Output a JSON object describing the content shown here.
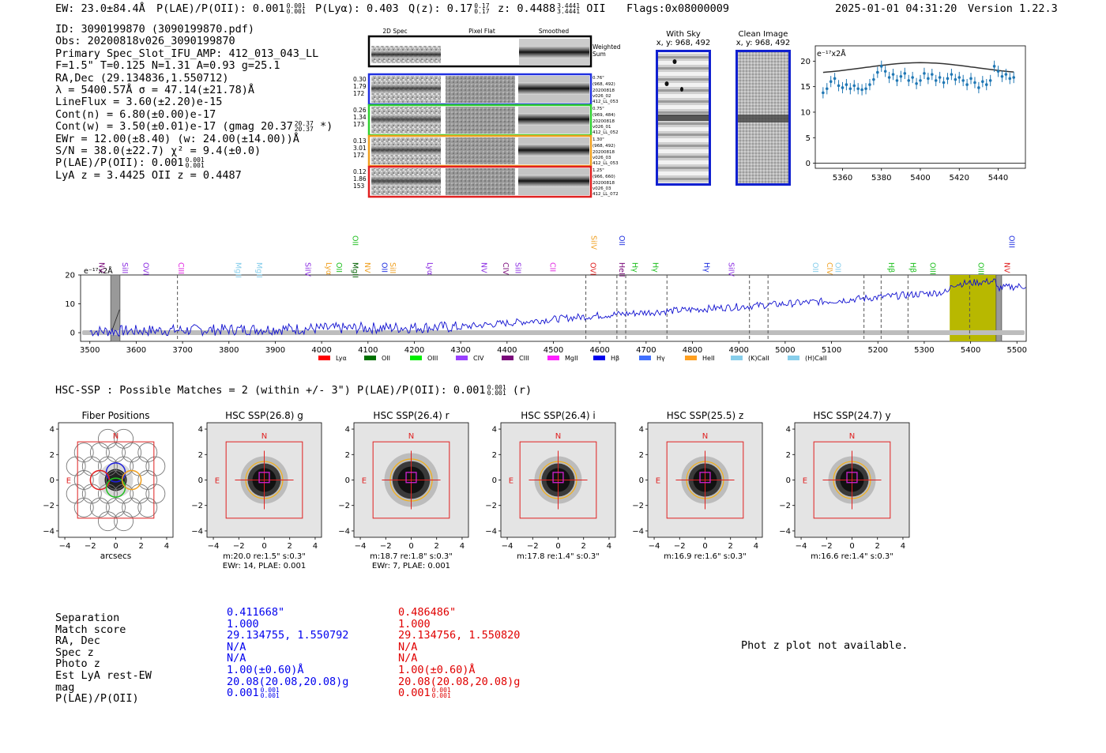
{
  "header": {
    "ew": "EW: 23.0±84.4Å",
    "plae_label": "P(LAE)/P(OII): 0.001",
    "plae_hi": "0.001",
    "plae_lo": "0.001",
    "plya": "P(Lyα): 0.403",
    "qz_label": "Q(z): 0.17",
    "qz_hi": "0.17",
    "qz_lo": "0.17",
    "z_label": "z: 0.4488",
    "z_hi": "3.4441",
    "z_lo": "3.4441",
    "z_line": "OII",
    "flags": "Flags:0x08000009",
    "datetime": "2025-01-01 04:31:20",
    "version": "Version 1.22.3"
  },
  "info": {
    "id": "ID: 3090199870 (3090199870.pdf)",
    "obs": "Obs: 20200818v026_3090199870",
    "primary": "Primary Spec_Slot_IFU_AMP: 412_013_043_LL",
    "fwhm": "F=1.5\"  T=0.125  N=1.31  A=0.93  g=25.1",
    "radec": "RA,Dec (29.134836,1.550712)",
    "lambda": "λ = 5400.57Å  σ = 47.14(±21.78)Å",
    "lineflux": "LineFlux = 3.60(±2.20)e-15",
    "contn": "Cont(n) = 6.80(±0.00)e-17",
    "contw": "Cont(w) = 3.50(±0.01)e-17 (gmag 20.37",
    "contw_hi": "20.37",
    "contw_lo": "20.37",
    "contw_end": "*)",
    "ewr": "EWr = 12.00(±8.40) (w: 24.00(±14.00))Å",
    "sn": "S/N = 38.0(±22.7)  χ² = 9.4(±0.0)",
    "plae": "P(LAE)/P(OII): 0.001",
    "plae_hi": "0.001",
    "plae_lo": "0.001",
    "lyaz": "LyA z = 3.4425  OII z = 0.4487"
  },
  "cutouts": {
    "col_2d": "2D Spec",
    "col_flat": "Pixel Flat",
    "col_smooth": "Smoothed",
    "weighted": "Weighted",
    "sum": "Sum",
    "rows": [
      {
        "a": "0.30",
        "b": "1.79",
        "c": "172",
        "r1": "0.76\"",
        "r2": "(968, 492)",
        "r3": "20200818",
        "r4": "v026_02",
        "r5": "412_LL_053",
        "color": "#2030e0"
      },
      {
        "a": "0.26",
        "b": "1.34",
        "c": "173",
        "r1": "0.75\"",
        "r2": "(969, 484)",
        "r3": "20200818",
        "r4": "v026_01",
        "r5": "412_LL_052",
        "color": "#30d030"
      },
      {
        "a": "0.13",
        "b": "3.01",
        "c": "172",
        "r1": "1.30\"",
        "r2": "(968, 492)",
        "r3": "20200818",
        "r4": "v026_03",
        "r5": "412_LL_053",
        "color": "#f0a020"
      },
      {
        "a": "0.12",
        "b": "1.86",
        "c": "153",
        "r1": "1.25\"",
        "r2": "(966, 660)",
        "r3": "20200818",
        "r4": "v026_03",
        "r5": "412_LL_072",
        "color": "#e02020"
      }
    ]
  },
  "sky": {
    "with_sky": "With Sky",
    "with_sky_xy": "x, y: 968, 492",
    "clean": "Clean Image",
    "clean_xy": "x, y: 968, 492"
  },
  "zoom_chart": {
    "type": "line",
    "ylabel": "e⁻¹⁷x2Å",
    "xticks": [
      5360,
      5380,
      5400,
      5420,
      5440
    ],
    "yticks": [
      0,
      5,
      10,
      15,
      20
    ],
    "xlim": [
      5346,
      5454
    ],
    "ylim": [
      -1,
      23
    ],
    "points": [
      [
        5350,
        13.8
      ],
      [
        5352,
        14.6
      ],
      [
        5354,
        16
      ],
      [
        5356,
        16.6
      ],
      [
        5358,
        15.2
      ],
      [
        5360,
        14.8
      ],
      [
        5362,
        15.4
      ],
      [
        5364,
        14.6
      ],
      [
        5366,
        15.2
      ],
      [
        5368,
        14.6
      ],
      [
        5370,
        14.4
      ],
      [
        5372,
        14.6
      ],
      [
        5374,
        15.4
      ],
      [
        5376,
        16.4
      ],
      [
        5378,
        17.8
      ],
      [
        5380,
        19
      ],
      [
        5382,
        18
      ],
      [
        5384,
        16.8
      ],
      [
        5386,
        17.4
      ],
      [
        5388,
        16.2
      ],
      [
        5390,
        17
      ],
      [
        5392,
        17.6
      ],
      [
        5394,
        16.2
      ],
      [
        5396,
        16.8
      ],
      [
        5398,
        15.6
      ],
      [
        5400,
        16.2
      ],
      [
        5402,
        17.6
      ],
      [
        5404,
        16.6
      ],
      [
        5406,
        17.4
      ],
      [
        5408,
        16.2
      ],
      [
        5410,
        16.8
      ],
      [
        5412,
        15.8
      ],
      [
        5414,
        16.6
      ],
      [
        5416,
        17.4
      ],
      [
        5418,
        16.4
      ],
      [
        5420,
        16.8
      ],
      [
        5422,
        16.2
      ],
      [
        5424,
        15.4
      ],
      [
        5426,
        16.6
      ],
      [
        5428,
        15.8
      ],
      [
        5430,
        14.8
      ],
      [
        5432,
        16
      ],
      [
        5434,
        15.4
      ],
      [
        5436,
        16.2
      ],
      [
        5438,
        19
      ],
      [
        5440,
        18
      ],
      [
        5442,
        17
      ],
      [
        5444,
        17.4
      ],
      [
        5446,
        16.6
      ],
      [
        5448,
        16.8
      ]
    ]
  },
  "spectrum": {
    "type": "line",
    "ylabel": "e⁻¹⁷x2Å",
    "xticks": [
      3500,
      3600,
      3700,
      3800,
      3900,
      4000,
      4100,
      4200,
      4300,
      4400,
      4500,
      4600,
      4700,
      4800,
      4900,
      5000,
      5100,
      5200,
      5300,
      5400,
      5500
    ],
    "yticks": [
      0,
      10,
      20
    ],
    "xlim": [
      3480,
      5520
    ],
    "ylim": [
      -3,
      20
    ],
    "highlight_range": [
      5355,
      5455
    ],
    "dashed_lines": [
      3689,
      4570,
      4637,
      4656,
      4745,
      4923,
      4963,
      5170,
      5207,
      5265,
      5398
    ],
    "lines": [
      {
        "name": "NV",
        "x": 3515,
        "color": "#7a0a7a"
      },
      {
        "name": "SiII",
        "x": 3565,
        "color": "#8a2be2"
      },
      {
        "name": "OVI",
        "x": 3610,
        "color": "#8a2be2"
      },
      {
        "name": "CIII",
        "x": 3686,
        "color": "#e020e0"
      },
      {
        "name": "MgII",
        "x": 3810,
        "color": "#87ceeb"
      },
      {
        "name": "MgII",
        "x": 3855,
        "color": "#87ceeb"
      },
      {
        "name": "SiIV",
        "x": 3960,
        "color": "#8a2be2"
      },
      {
        "name": "Lyα",
        "x": 4005,
        "color": "#f0a020"
      },
      {
        "name": "OII",
        "x": 4027,
        "color": "#20c020"
      },
      {
        "name": "MgII",
        "x": 4062,
        "color": "#006000"
      },
      {
        "name": "OII",
        "x": 4062,
        "color": "#20c020",
        "upper": true
      },
      {
        "name": "NV",
        "x": 4088,
        "color": "#f0a020"
      },
      {
        "name": "OII",
        "x": 4125,
        "color": "#2030e0"
      },
      {
        "name": "SiII",
        "x": 4143,
        "color": "#f0a020"
      },
      {
        "name": "Lyα",
        "x": 4223,
        "color": "#8a2be2"
      },
      {
        "name": "NV",
        "x": 4340,
        "color": "#8a2be2"
      },
      {
        "name": "CIV",
        "x": 4387,
        "color": "#7a0a7a"
      },
      {
        "name": "SiII",
        "x": 4413,
        "color": "#8a2be2"
      },
      {
        "name": "CII",
        "x": 4488,
        "color": "#e020e0"
      },
      {
        "name": "OVI",
        "x": 4575,
        "color": "#e02020"
      },
      {
        "name": "SiIV",
        "x": 4577,
        "color": "#f0a020",
        "upper": true
      },
      {
        "name": "HeII",
        "x": 4637,
        "color": "#7a0a7a"
      },
      {
        "name": "OII",
        "x": 4637,
        "color": "#2030e0",
        "upper": true
      },
      {
        "name": "Hγ",
        "x": 4665,
        "color": "#20c020"
      },
      {
        "name": "Hγ",
        "x": 4710,
        "color": "#20c020"
      },
      {
        "name": "Hγ",
        "x": 4820,
        "color": "#2030e0"
      },
      {
        "name": "SiIV",
        "x": 4873,
        "color": "#8a2be2"
      },
      {
        "name": "OII",
        "x": 5055,
        "color": "#87ceeb"
      },
      {
        "name": "CIV",
        "x": 5085,
        "color": "#f0a020"
      },
      {
        "name": "OII",
        "x": 5103,
        "color": "#87ceeb"
      },
      {
        "name": "Hβ",
        "x": 5218,
        "color": "#20c020"
      },
      {
        "name": "Hβ",
        "x": 5265,
        "color": "#20c020"
      },
      {
        "name": "OIII",
        "x": 5308,
        "color": "#20c020"
      },
      {
        "name": "OIII",
        "x": 5412,
        "color": "#20c020"
      },
      {
        "name": "OIII",
        "x": 5478,
        "color": "#2030e0",
        "upper": true
      },
      {
        "name": "NV",
        "x": 5468,
        "color": "#e02020"
      }
    ],
    "legend": [
      {
        "name": "Lyα",
        "color": "#ff0000"
      },
      {
        "name": "OII",
        "color": "#007000"
      },
      {
        "name": "OIII",
        "color": "#00ee00"
      },
      {
        "name": "CIV",
        "color": "#9a40ff"
      },
      {
        "name": "CIII",
        "color": "#7a0a7a"
      },
      {
        "name": "MgII",
        "color": "#ff20ff"
      },
      {
        "name": "Hβ",
        "color": "#0000ee"
      },
      {
        "name": "Hγ",
        "color": "#4070ff"
      },
      {
        "name": "HeII",
        "color": "#ffa020"
      },
      {
        "name": "(K)CaII",
        "color": "#87ceeb"
      },
      {
        "name": "(H)CaII",
        "color": "#87ceeb"
      }
    ]
  },
  "hsc": {
    "title": "HSC-SSP : Possible Matches = 2 (within +/- 3\")  P(LAE)/P(OII): 0.001",
    "title_hi": "0.001",
    "title_lo": "0.001",
    "title_end": "(r)",
    "ticks": [
      "−4",
      "−2",
      "0",
      "2",
      "4"
    ],
    "fiber_title": "Fiber Positions",
    "fiber_xlabel": "arcsecs",
    "north": "N",
    "east": "E",
    "panels": [
      {
        "title": "HSC SSP(26.8) g",
        "l1": "m:20.0  re:1.5\"  s:0.3\"",
        "l2": "EWr: 14, PLAE: 0.001",
        "blob": 30
      },
      {
        "title": "HSC SSP(26.4) r",
        "l1": "m:18.7  re:1.8\"  s:0.3\"",
        "l2": "EWr: 7, PLAE: 0.001",
        "blob": 34
      },
      {
        "title": "HSC SSP(26.4) i",
        "l1": "m:17.8  re:1.4\"  s:0.3\"",
        "l2": "",
        "blob": 30
      },
      {
        "title": "HSC SSP(25.5) z",
        "l1": "m:16.9  re:1.6\"  s:0.3\"",
        "l2": "",
        "blob": 30
      },
      {
        "title": "HSC SSP(24.7) y",
        "l1": "m:16.6  re:1.4\"  s:0.3\"",
        "l2": "",
        "blob": 30
      }
    ]
  },
  "table": {
    "labels": [
      "Separation",
      "Match score",
      "RA, Dec",
      "Spec z",
      "Photo z",
      "Est LyA rest-EW",
      "mag",
      "P(LAE)/P(OII)"
    ],
    "col1": [
      "0.411668\"",
      "1.000",
      "29.134755, 1.550792",
      "N/A",
      "N/A",
      "1.00(±0.60)Å",
      "20.08(20.08,20.08)g",
      "0.001"
    ],
    "col1_hi": "0.001",
    "col1_lo": "0.001",
    "col2": [
      "0.486486\"",
      "1.000",
      "29.134756, 1.550820",
      "N/A",
      "N/A",
      "1.00(±0.60)Å",
      "20.08(20.08,20.08)g",
      "0.001"
    ],
    "col2_hi": "0.001",
    "col2_lo": "0.001",
    "photz_note": "Phot z plot not available.",
    "col1_color": "#0000ee",
    "col2_color": "#e00000"
  }
}
